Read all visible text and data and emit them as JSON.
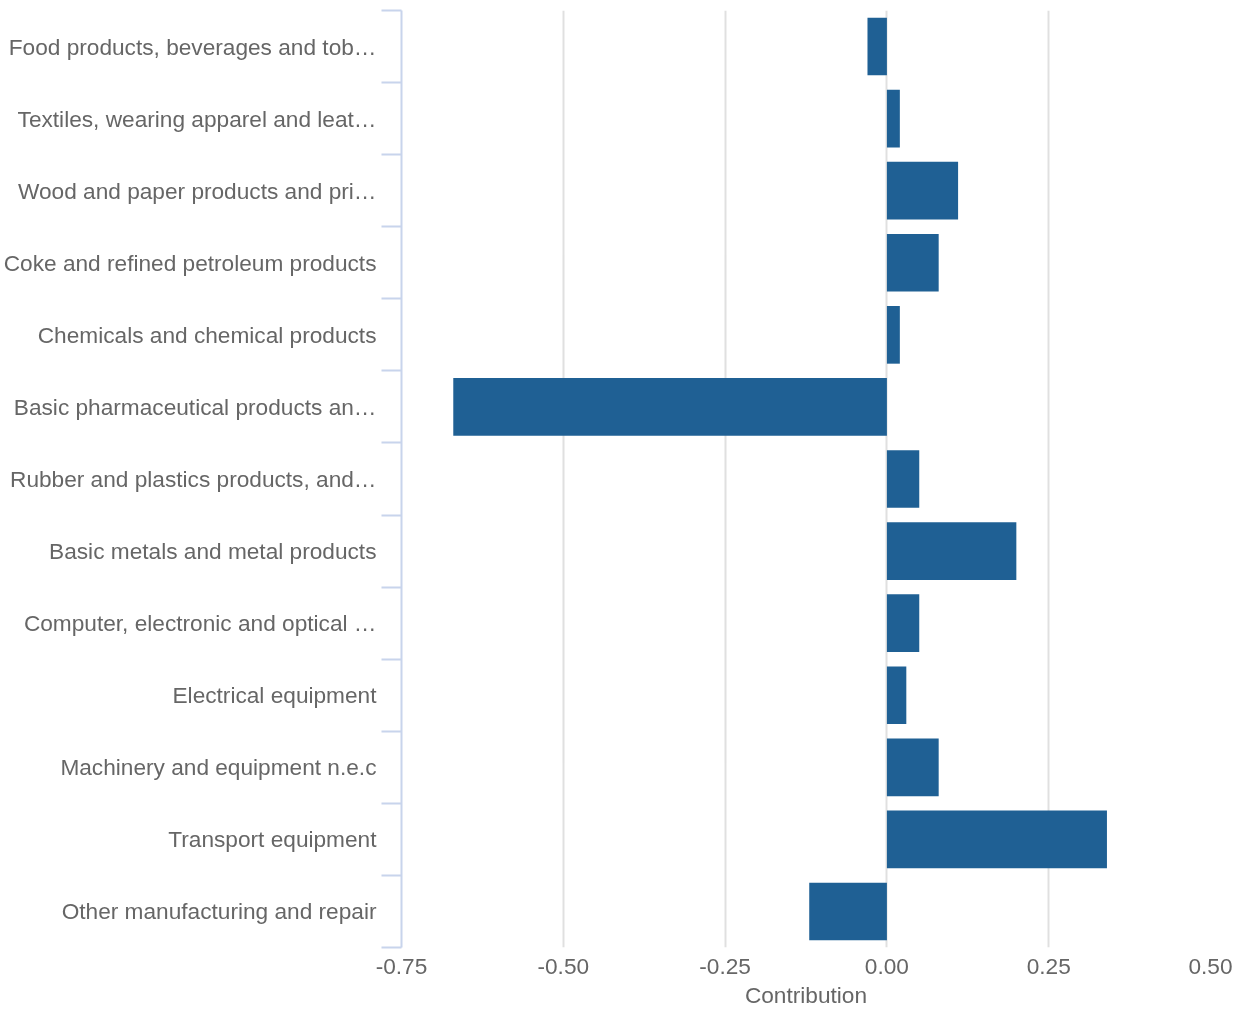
{
  "chart_data": {
    "type": "bar",
    "orientation": "horizontal",
    "xlabel": "Contribution",
    "categories": [
      "Food products, beverages and tob…",
      "Textiles, wearing apparel and leat…",
      "Wood and paper products and pri…",
      "Coke and refined petroleum products",
      "Chemicals and chemical products",
      "Basic pharmaceutical products an…",
      "Rubber and plastics products, and…",
      "Basic metals and metal products",
      "Computer, electronic and optical …",
      "Electrical equipment",
      "Machinery and equipment n.e.c",
      "Transport equipment",
      "Other manufacturing and repair"
    ],
    "values": [
      -0.03,
      0.02,
      0.11,
      0.08,
      0.02,
      -0.67,
      0.05,
      0.2,
      0.05,
      0.03,
      0.08,
      0.34,
      -0.12
    ],
    "color": "#1f6094",
    "xlim": [
      -0.75,
      0.5
    ],
    "xticks": [
      {
        "value": -0.75,
        "label": "-0.75"
      },
      {
        "value": -0.5,
        "label": "-0.50"
      },
      {
        "value": -0.25,
        "label": "-0.25"
      },
      {
        "value": 0,
        "label": "0.00"
      },
      {
        "value": 0.25,
        "label": "0.25"
      },
      {
        "value": 0.5,
        "label": "0.50"
      }
    ],
    "grid": "x"
  }
}
